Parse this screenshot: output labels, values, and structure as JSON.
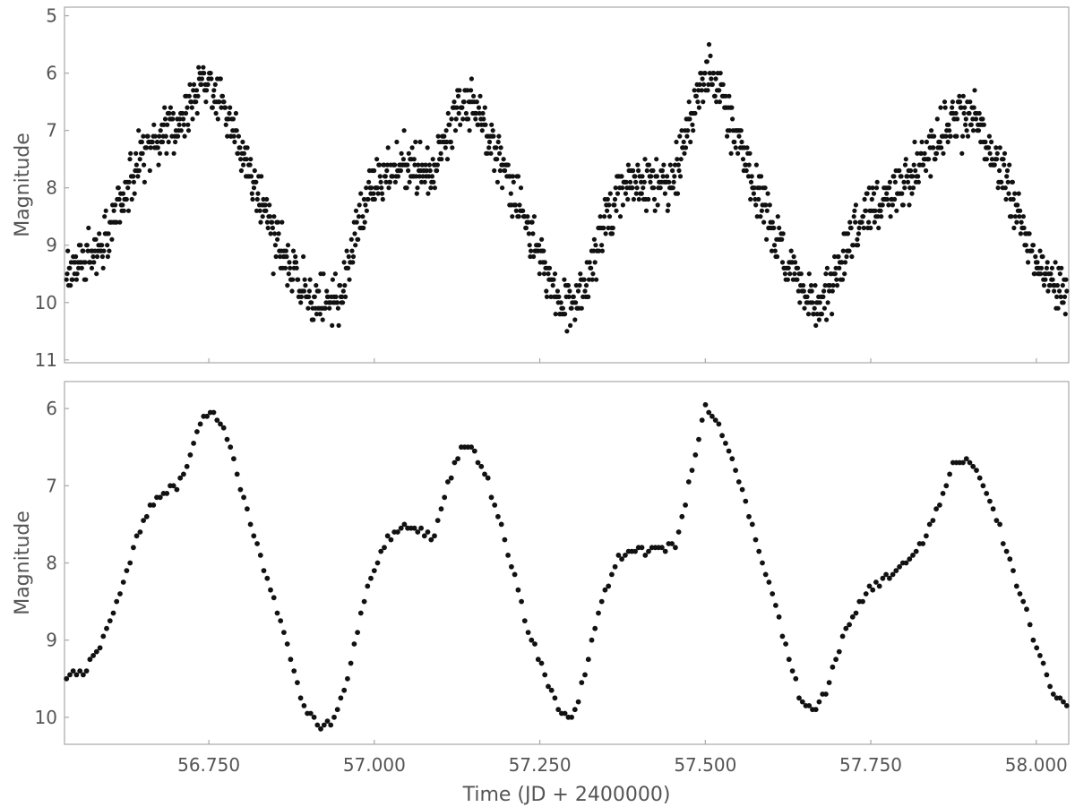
{
  "chart_data": [
    {
      "type": "scatter",
      "title": "",
      "xlabel": "",
      "ylabel": "Magnitude",
      "y_inverted": true,
      "xlim": [
        56.532,
        58.049
      ],
      "ylim": [
        4.85,
        11.05
      ],
      "xticks": [
        56.75,
        57.0,
        57.25,
        57.5,
        57.75,
        58.0
      ],
      "xtick_labels": [
        "",
        "",
        "",
        "",
        "",
        ""
      ],
      "yticks": [
        5,
        6,
        7,
        8,
        9,
        10,
        11
      ],
      "ytick_labels": [
        "5",
        "6",
        "7",
        "8",
        "9",
        "10",
        "11"
      ],
      "grid": false,
      "legend": "none",
      "marker_color": "#111111",
      "sampling": {
        "x_start": 56.535,
        "x_end": 58.046,
        "count": 1500,
        "jitter": 0.34,
        "step": 0.1
      },
      "envelope": [
        [
          56.535,
          9.5
        ],
        [
          56.58,
          9.1
        ],
        [
          56.63,
          8.0
        ],
        [
          56.66,
          7.2
        ],
        [
          56.7,
          6.95
        ],
        [
          56.74,
          6.15
        ],
        [
          56.76,
          6.25
        ],
        [
          56.8,
          7.4
        ],
        [
          56.85,
          8.9
        ],
        [
          56.9,
          10.0
        ],
        [
          56.92,
          10.1
        ],
        [
          56.95,
          9.9
        ],
        [
          56.99,
          8.1
        ],
        [
          57.03,
          7.6
        ],
        [
          57.09,
          7.75
        ],
        [
          57.13,
          6.5
        ],
        [
          57.15,
          6.5
        ],
        [
          57.2,
          7.8
        ],
        [
          57.25,
          9.2
        ],
        [
          57.28,
          10.0
        ],
        [
          57.31,
          10.0
        ],
        [
          57.35,
          8.6
        ],
        [
          57.38,
          7.95
        ],
        [
          57.45,
          7.85
        ],
        [
          57.5,
          6.05
        ],
        [
          57.52,
          6.25
        ],
        [
          57.57,
          7.8
        ],
        [
          57.62,
          9.2
        ],
        [
          57.66,
          10.0
        ],
        [
          57.69,
          9.75
        ],
        [
          57.73,
          8.6
        ],
        [
          57.78,
          8.05
        ],
        [
          57.82,
          7.75
        ],
        [
          57.87,
          6.8
        ],
        [
          57.9,
          6.75
        ],
        [
          57.95,
          7.8
        ],
        [
          58.0,
          9.3
        ],
        [
          58.046,
          9.85
        ]
      ]
    },
    {
      "type": "scatter",
      "title": "",
      "xlabel": "Time (JD + 2400000)",
      "ylabel": "Magnitude",
      "y_inverted": true,
      "xlim": [
        56.532,
        58.049
      ],
      "ylim": [
        5.65,
        10.35
      ],
      "xticks": [
        56.75,
        57.0,
        57.25,
        57.5,
        57.75,
        58.0
      ],
      "xtick_labels": [
        "56.750",
        "57.000",
        "57.250",
        "57.500",
        "57.750",
        "58.000"
      ],
      "yticks": [
        6,
        7,
        8,
        9,
        10
      ],
      "ytick_labels": [
        "6",
        "7",
        "8",
        "9",
        "10"
      ],
      "grid": false,
      "legend": "none",
      "marker_color": "#111111",
      "sampling": {
        "x_start": 56.535,
        "x_end": 58.046,
        "count": 300,
        "jitter": 0.04,
        "step": 0.05
      },
      "envelope": [
        [
          56.535,
          9.5
        ],
        [
          56.56,
          9.4
        ],
        [
          56.58,
          9.2
        ],
        [
          56.6,
          8.8
        ],
        [
          56.62,
          8.3
        ],
        [
          56.64,
          7.7
        ],
        [
          56.665,
          7.2
        ],
        [
          56.69,
          7.05
        ],
        [
          56.715,
          6.85
        ],
        [
          56.74,
          6.1
        ],
        [
          56.755,
          6.05
        ],
        [
          56.775,
          6.3
        ],
        [
          56.8,
          7.1
        ],
        [
          56.83,
          8.0
        ],
        [
          56.86,
          8.8
        ],
        [
          56.89,
          9.8
        ],
        [
          56.92,
          10.15
        ],
        [
          56.94,
          10.05
        ],
        [
          56.965,
          9.3
        ],
        [
          56.99,
          8.3
        ],
        [
          57.02,
          7.7
        ],
        [
          57.045,
          7.5
        ],
        [
          57.07,
          7.6
        ],
        [
          57.09,
          7.7
        ],
        [
          57.11,
          7.0
        ],
        [
          57.13,
          6.5
        ],
        [
          57.145,
          6.45
        ],
        [
          57.17,
          6.9
        ],
        [
          57.2,
          7.8
        ],
        [
          57.23,
          8.8
        ],
        [
          57.255,
          9.4
        ],
        [
          57.28,
          9.95
        ],
        [
          57.3,
          10.0
        ],
        [
          57.32,
          9.4
        ],
        [
          57.345,
          8.4
        ],
        [
          57.37,
          7.95
        ],
        [
          57.4,
          7.85
        ],
        [
          57.43,
          7.8
        ],
        [
          57.455,
          7.8
        ],
        [
          57.48,
          6.8
        ],
        [
          57.5,
          5.95
        ],
        [
          57.525,
          6.3
        ],
        [
          57.56,
          7.2
        ],
        [
          57.59,
          8.1
        ],
        [
          57.62,
          9.0
        ],
        [
          57.645,
          9.8
        ],
        [
          57.665,
          9.9
        ],
        [
          57.685,
          9.6
        ],
        [
          57.71,
          8.9
        ],
        [
          57.74,
          8.4
        ],
        [
          57.77,
          8.2
        ],
        [
          57.8,
          8.0
        ],
        [
          57.83,
          7.7
        ],
        [
          57.855,
          7.2
        ],
        [
          57.875,
          6.7
        ],
        [
          57.89,
          6.65
        ],
        [
          57.91,
          6.8
        ],
        [
          57.935,
          7.3
        ],
        [
          57.96,
          8.0
        ],
        [
          57.985,
          8.6
        ],
        [
          58.005,
          9.2
        ],
        [
          58.025,
          9.7
        ],
        [
          58.046,
          9.85
        ]
      ]
    }
  ]
}
